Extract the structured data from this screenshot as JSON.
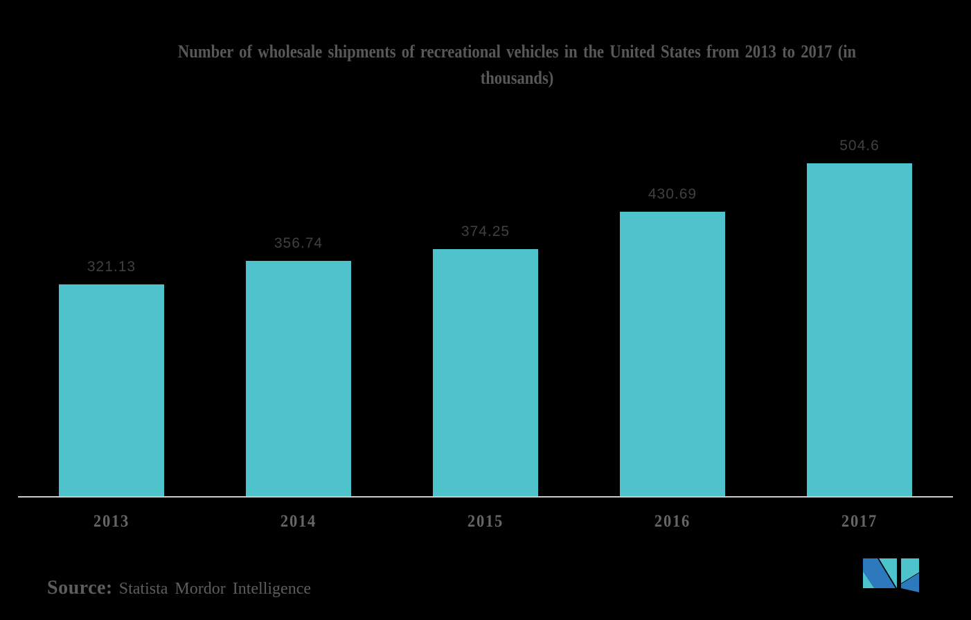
{
  "page": {
    "background": "#000000"
  },
  "chart_data": {
    "type": "bar",
    "title": "Number of wholesale shipments of recreational vehicles in the United States from 2013 to 2017 (in thousands)",
    "title_lines": [
      "Number of wholesale shipments of recreational vehicles in the United States from 2013 to 2017 (in",
      "thousands)"
    ],
    "categories": [
      "2013",
      "2014",
      "2015",
      "2016",
      "2017"
    ],
    "values": [
      321.13,
      356.74,
      374.25,
      430.69,
      504.6
    ],
    "value_labels": [
      "321.13",
      "356.74",
      "374.25",
      "430.69",
      "504.6"
    ],
    "unit": "thousands",
    "xlabel": "",
    "ylabel": "",
    "ylim": [
      0,
      755
    ],
    "grid": false,
    "legend": "none",
    "bar_color": "#4EC3CB",
    "axis_line_color": "#CBCBCB",
    "title_color": "#585858",
    "value_label_color": "#3E4043",
    "category_label_color": "#666666"
  },
  "source": {
    "label": "Source:",
    "text": "Statista Mordor Intelligence",
    "color": "#5D5D5D"
  },
  "logo": {
    "name": "mordor-intelligence-logo",
    "colors": {
      "blue": "#2D79BE",
      "teal": "#4DC4CC"
    }
  }
}
